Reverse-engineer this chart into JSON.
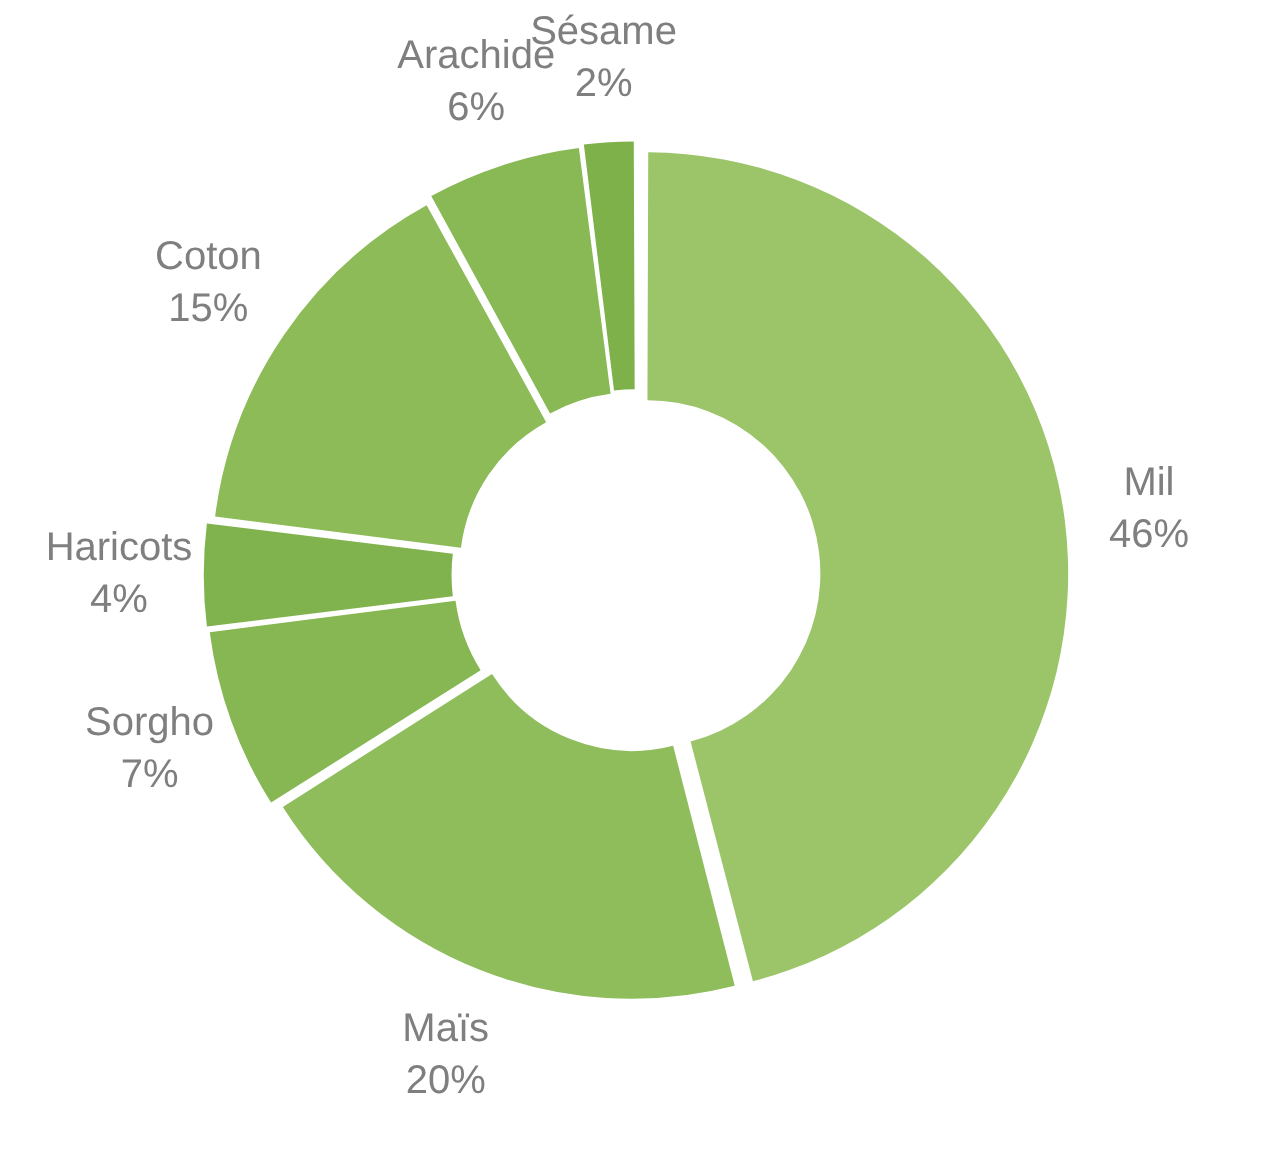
{
  "chart_data": {
    "type": "donut",
    "categories": [
      "Mil",
      "Maïs",
      "Sorgho",
      "Haricots",
      "Coton",
      "Arachide",
      "Sésame"
    ],
    "values": [
      46,
      20,
      7,
      4,
      15,
      6,
      2
    ],
    "value_labels": [
      "46%",
      "20%",
      "7%",
      "4%",
      "15%",
      "6%",
      "2%"
    ],
    "colors": [
      "#9cc56a",
      "#8fbd5c",
      "#86b753",
      "#80b34e",
      "#8cbb58",
      "#88b955",
      "#7fb14b"
    ],
    "legend": false
  }
}
